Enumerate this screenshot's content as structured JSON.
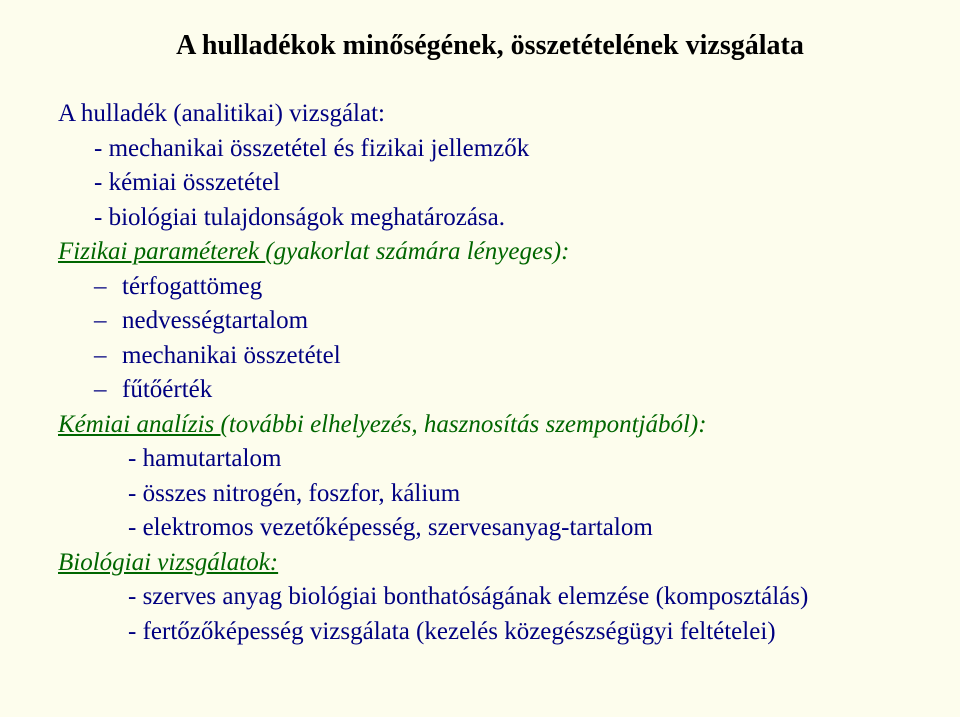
{
  "slide": {
    "background_color": "#fdfded",
    "title": {
      "text": "A hulladékok minőségének, összetételének vizsgálata",
      "color": "#000000",
      "fontsize": 28
    },
    "subheading": {
      "text": "A hulladék (analitikai) vizsgálat:",
      "color": "#000080",
      "fontsize": 25
    },
    "main_bullets": [
      "- mechanikai összetétel és fizikai jellemzők",
      "- kémiai összetétel",
      "- biológiai tulajdonságok meghatározása."
    ],
    "section1": {
      "lead_underlined": "Fizikai paraméterek ",
      "lead_rest": "(gyakorlat számára lényeges):",
      "color": "#006600",
      "items": [
        "térfogattömeg",
        "nedvességtartalom",
        "mechanikai összetétel",
        "fűtőérték"
      ]
    },
    "section2": {
      "lead_underlined": "Kémiai analízis ",
      "lead_rest": "(további elhelyezés, hasznosítás szempontjából):",
      "color": "#006600",
      "items": [
        "- hamutartalom",
        "- összes nitrogén, foszfor, kálium",
        "- elektromos vezetőképesség, szervesanyag-tartalom"
      ]
    },
    "section3": {
      "lead": "Biológiai vizsgálatok:",
      "color": "#006600",
      "items": [
        "- szerves anyag biológiai bonthatóságának elemzése (komposztálás)",
        "- fertőzőképesség vizsgálata (kezelés közegészségügyi feltételei)"
      ]
    },
    "body_fontsize": 25,
    "body_color": "#000080",
    "dash_color": "#000080"
  }
}
